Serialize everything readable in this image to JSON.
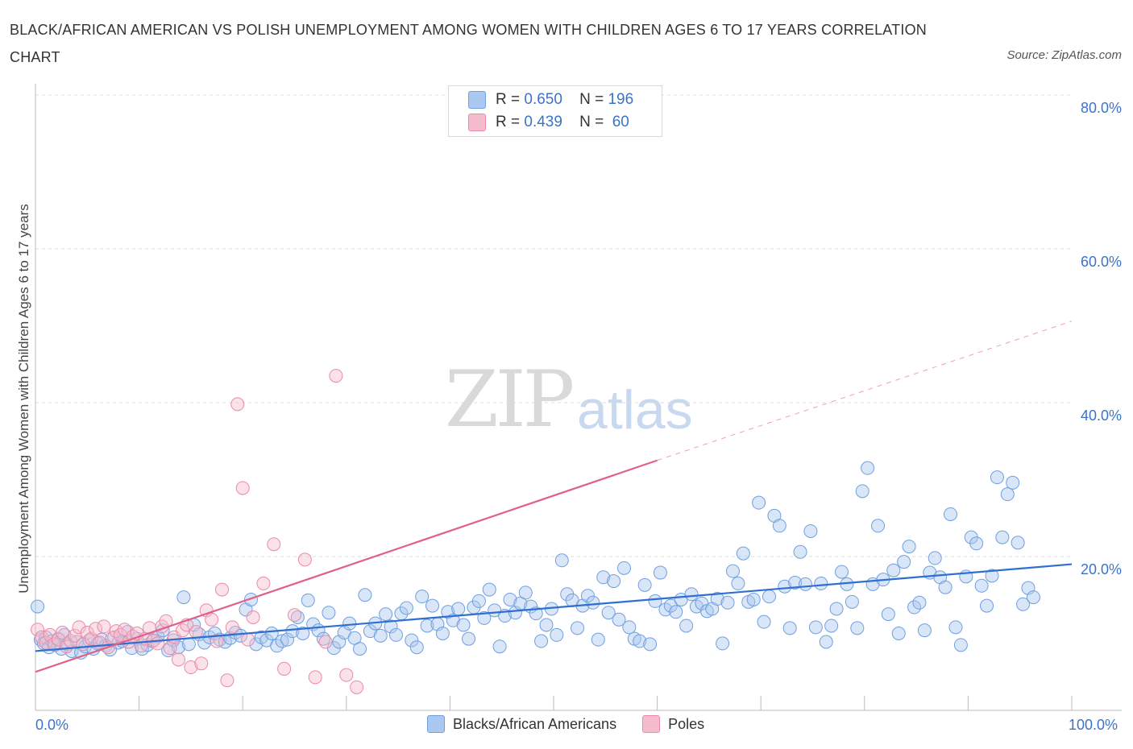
{
  "title": "BLACK/AFRICAN AMERICAN VS POLISH UNEMPLOYMENT AMONG WOMEN WITH CHILDREN AGES 6 TO 17 YEARS CORRELATION CHART",
  "source": "Source: ZipAtlas.com",
  "watermark": {
    "zip": "ZIP",
    "atlas": "atlas"
  },
  "legend_top": {
    "rows": [
      {
        "r_label": "R =",
        "r_value": "0.650",
        "n_label": "N =",
        "n_value": "196",
        "color": "#aac8f0"
      },
      {
        "r_label": "R =",
        "r_value": "0.439",
        "n_label": "N =",
        "n_value": "60",
        "color": "#f6bccd"
      }
    ]
  },
  "legend_bottom": [
    {
      "label": "Blacks/African Americans",
      "color": "#aac8f0"
    },
    {
      "label": "Poles",
      "color": "#f6bccd"
    }
  ],
  "colors": {
    "blue_fill": "#aac8f0",
    "blue_stroke": "#6f9fe0",
    "blue_line": "#2f6fd0",
    "pink_fill": "#f6bccd",
    "pink_stroke": "#ea8aa8",
    "pink_line": "#e0608a",
    "tick_label": "#3b73c8",
    "grid": "#dddddd"
  },
  "chart_data": {
    "type": "scatter",
    "title": "BLACK/AFRICAN AMERICAN VS POLISH UNEMPLOYMENT AMONG WOMEN WITH CHILDREN AGES 6 TO 17 YEARS CORRELATION CHART",
    "xlabel": "",
    "ylabel": "Unemployment Among Women with Children Ages 6 to 17 years",
    "xlim": [
      0,
      100
    ],
    "ylim": [
      0,
      80
    ],
    "x_tick_labels": [
      "0.0%",
      "100.0%"
    ],
    "y_ticks": [
      20,
      40,
      60,
      80
    ],
    "y_tick_labels": [
      "20.0%",
      "40.0%",
      "60.0%",
      "80.0%"
    ],
    "grid": "horizontal dashed",
    "legend_placement": "bottom",
    "series": [
      {
        "name": "Blacks/African Americans",
        "color": "#aac8f0",
        "points": [
          [
            0.2,
            13.5
          ],
          [
            0.5,
            9.2
          ],
          [
            0.8,
            8.7
          ],
          [
            1.0,
            9.5
          ],
          [
            1.3,
            8.2
          ],
          [
            1.6,
            9.0
          ],
          [
            1.9,
            8.5
          ],
          [
            2.2,
            9.3
          ],
          [
            2.5,
            8.0
          ],
          [
            2.8,
            9.8
          ],
          [
            3.1,
            8.6
          ],
          [
            3.5,
            7.7
          ],
          [
            4.0,
            8.9
          ],
          [
            4.4,
            7.5
          ],
          [
            4.8,
            8.3
          ],
          [
            5.2,
            9.1
          ],
          [
            5.6,
            8.0
          ],
          [
            6.0,
            8.7
          ],
          [
            6.4,
            9.2
          ],
          [
            6.8,
            8.4
          ],
          [
            7.2,
            7.9
          ],
          [
            7.6,
            9.5
          ],
          [
            8.0,
            8.8
          ],
          [
            8.4,
            9.0
          ],
          [
            8.9,
            10.2
          ],
          [
            9.3,
            8.1
          ],
          [
            9.8,
            9.3
          ],
          [
            10.3,
            8.0
          ],
          [
            10.8,
            8.5
          ],
          [
            11.3,
            9.0
          ],
          [
            11.8,
            9.6
          ],
          [
            12.3,
            10.4
          ],
          [
            12.8,
            7.8
          ],
          [
            13.3,
            9.1
          ],
          [
            13.8,
            8.2
          ],
          [
            14.3,
            14.7
          ],
          [
            14.8,
            8.6
          ],
          [
            15.3,
            11.1
          ],
          [
            15.8,
            9.9
          ],
          [
            16.3,
            8.8
          ],
          [
            16.8,
            9.5
          ],
          [
            17.3,
            10.0
          ],
          [
            17.8,
            9.2
          ],
          [
            18.3,
            8.9
          ],
          [
            18.8,
            9.4
          ],
          [
            19.3,
            10.1
          ],
          [
            19.8,
            9.7
          ],
          [
            20.3,
            13.1
          ],
          [
            20.8,
            14.4
          ],
          [
            21.3,
            8.6
          ],
          [
            21.8,
            9.5
          ],
          [
            22.3,
            9.1
          ],
          [
            22.8,
            10.0
          ],
          [
            23.3,
            8.4
          ],
          [
            23.8,
            9.0
          ],
          [
            24.3,
            9.2
          ],
          [
            24.8,
            10.3
          ],
          [
            25.3,
            12.1
          ],
          [
            25.8,
            10.0
          ],
          [
            26.3,
            14.3
          ],
          [
            26.8,
            11.2
          ],
          [
            27.3,
            10.4
          ],
          [
            27.8,
            9.3
          ],
          [
            28.3,
            12.7
          ],
          [
            28.8,
            8.1
          ],
          [
            29.3,
            8.9
          ],
          [
            29.8,
            10.1
          ],
          [
            30.3,
            11.3
          ],
          [
            30.8,
            9.4
          ],
          [
            31.3,
            8.0
          ],
          [
            31.8,
            15.0
          ],
          [
            32.3,
            10.3
          ],
          [
            32.8,
            11.3
          ],
          [
            33.3,
            9.7
          ],
          [
            33.8,
            12.5
          ],
          [
            34.3,
            10.9
          ],
          [
            34.8,
            9.8
          ],
          [
            35.3,
            12.6
          ],
          [
            35.8,
            13.3
          ],
          [
            36.3,
            9.1
          ],
          [
            36.8,
            8.2
          ],
          [
            37.3,
            14.8
          ],
          [
            37.8,
            11.0
          ],
          [
            38.3,
            13.6
          ],
          [
            38.8,
            11.2
          ],
          [
            39.3,
            10.0
          ],
          [
            39.8,
            12.8
          ],
          [
            40.3,
            11.7
          ],
          [
            40.8,
            13.2
          ],
          [
            41.3,
            11.1
          ],
          [
            41.8,
            9.3
          ],
          [
            42.3,
            13.4
          ],
          [
            42.8,
            14.2
          ],
          [
            43.3,
            12.0
          ],
          [
            43.8,
            15.7
          ],
          [
            44.3,
            13.0
          ],
          [
            44.8,
            8.3
          ],
          [
            45.3,
            12.3
          ],
          [
            45.8,
            14.4
          ],
          [
            46.3,
            12.7
          ],
          [
            46.8,
            13.9
          ],
          [
            47.3,
            15.3
          ],
          [
            47.8,
            13.5
          ],
          [
            48.3,
            12.6
          ],
          [
            48.8,
            9.0
          ],
          [
            49.3,
            11.1
          ],
          [
            49.8,
            13.2
          ],
          [
            50.3,
            9.8
          ],
          [
            50.8,
            19.5
          ],
          [
            51.3,
            15.1
          ],
          [
            51.8,
            14.3
          ],
          [
            52.3,
            10.7
          ],
          [
            52.8,
            13.6
          ],
          [
            53.3,
            14.9
          ],
          [
            53.8,
            14.0
          ],
          [
            54.3,
            9.2
          ],
          [
            54.8,
            17.3
          ],
          [
            55.3,
            12.7
          ],
          [
            55.8,
            16.8
          ],
          [
            56.3,
            11.8
          ],
          [
            56.8,
            18.5
          ],
          [
            57.3,
            10.8
          ],
          [
            57.8,
            9.3
          ],
          [
            58.3,
            9.0
          ],
          [
            58.8,
            16.3
          ],
          [
            59.3,
            8.6
          ],
          [
            59.8,
            14.2
          ],
          [
            60.3,
            17.9
          ],
          [
            60.8,
            13.1
          ],
          [
            61.3,
            13.6
          ],
          [
            61.8,
            12.8
          ],
          [
            62.3,
            14.4
          ],
          [
            62.8,
            11.0
          ],
          [
            63.3,
            15.1
          ],
          [
            63.8,
            13.5
          ],
          [
            64.3,
            13.9
          ],
          [
            64.8,
            12.9
          ],
          [
            65.3,
            13.2
          ],
          [
            65.8,
            14.5
          ],
          [
            66.3,
            8.7
          ],
          [
            66.8,
            14.0
          ],
          [
            67.3,
            18.1
          ],
          [
            67.8,
            16.5
          ],
          [
            68.3,
            20.4
          ],
          [
            68.8,
            14.1
          ],
          [
            69.3,
            14.4
          ],
          [
            69.8,
            27.0
          ],
          [
            70.3,
            11.5
          ],
          [
            70.8,
            14.8
          ],
          [
            71.3,
            25.3
          ],
          [
            71.8,
            24.0
          ],
          [
            72.3,
            16.1
          ],
          [
            72.8,
            10.7
          ],
          [
            73.3,
            16.6
          ],
          [
            73.8,
            20.6
          ],
          [
            74.3,
            16.4
          ],
          [
            74.8,
            23.3
          ],
          [
            75.3,
            10.8
          ],
          [
            75.8,
            16.5
          ],
          [
            76.3,
            8.9
          ],
          [
            76.8,
            11.0
          ],
          [
            77.3,
            13.2
          ],
          [
            77.8,
            18.0
          ],
          [
            78.3,
            16.4
          ],
          [
            78.8,
            14.1
          ],
          [
            79.3,
            10.7
          ],
          [
            79.8,
            28.5
          ],
          [
            80.3,
            31.5
          ],
          [
            80.8,
            16.4
          ],
          [
            81.3,
            24.0
          ],
          [
            81.8,
            17.0
          ],
          [
            82.3,
            12.5
          ],
          [
            82.8,
            18.2
          ],
          [
            83.3,
            10.0
          ],
          [
            83.8,
            19.3
          ],
          [
            84.3,
            21.3
          ],
          [
            84.8,
            13.4
          ],
          [
            85.3,
            14.0
          ],
          [
            85.8,
            10.4
          ],
          [
            86.3,
            17.9
          ],
          [
            86.8,
            19.8
          ],
          [
            87.3,
            17.3
          ],
          [
            87.8,
            16.0
          ],
          [
            88.3,
            25.5
          ],
          [
            88.8,
            10.8
          ],
          [
            89.3,
            8.5
          ],
          [
            89.8,
            17.4
          ],
          [
            90.3,
            22.5
          ],
          [
            90.8,
            21.7
          ],
          [
            91.3,
            16.2
          ],
          [
            91.8,
            13.6
          ],
          [
            92.3,
            17.5
          ],
          [
            92.8,
            30.3
          ],
          [
            93.3,
            22.5
          ],
          [
            93.8,
            28.1
          ],
          [
            94.3,
            29.6
          ],
          [
            94.8,
            21.8
          ],
          [
            95.3,
            13.8
          ],
          [
            95.8,
            15.9
          ],
          [
            96.3,
            14.7
          ]
        ]
      },
      {
        "name": "Poles",
        "color": "#f6bccd",
        "points": [
          [
            0.2,
            10.5
          ],
          [
            0.6,
            9.5
          ],
          [
            1.0,
            8.8
          ],
          [
            1.4,
            9.8
          ],
          [
            1.8,
            8.6
          ],
          [
            2.2,
            9.2
          ],
          [
            2.6,
            10.1
          ],
          [
            3.0,
            8.3
          ],
          [
            3.4,
            9.0
          ],
          [
            3.8,
            9.7
          ],
          [
            4.2,
            10.8
          ],
          [
            4.6,
            8.6
          ],
          [
            5.0,
            10.1
          ],
          [
            5.4,
            9.3
          ],
          [
            5.8,
            10.6
          ],
          [
            6.2,
            8.8
          ],
          [
            6.6,
            10.9
          ],
          [
            7.0,
            8.2
          ],
          [
            7.4,
            9.4
          ],
          [
            7.8,
            10.3
          ],
          [
            8.2,
            9.8
          ],
          [
            8.6,
            10.5
          ],
          [
            9.0,
            8.9
          ],
          [
            9.4,
            9.6
          ],
          [
            9.8,
            10.0
          ],
          [
            10.2,
            8.4
          ],
          [
            10.6,
            9.3
          ],
          [
            11.0,
            10.7
          ],
          [
            11.4,
            9.1
          ],
          [
            11.8,
            8.7
          ],
          [
            12.2,
            10.9
          ],
          [
            12.6,
            11.6
          ],
          [
            13.0,
            8.1
          ],
          [
            13.4,
            9.5
          ],
          [
            13.8,
            6.6
          ],
          [
            14.2,
            10.4
          ],
          [
            14.6,
            11.1
          ],
          [
            15.0,
            5.6
          ],
          [
            15.5,
            10.2
          ],
          [
            16.0,
            6.1
          ],
          [
            16.5,
            13.0
          ],
          [
            17.0,
            11.8
          ],
          [
            17.5,
            9.0
          ],
          [
            18.0,
            15.7
          ],
          [
            18.5,
            3.9
          ],
          [
            19.0,
            10.8
          ],
          [
            19.5,
            39.8
          ],
          [
            20.0,
            28.9
          ],
          [
            20.5,
            9.2
          ],
          [
            21.0,
            12.1
          ],
          [
            22.0,
            16.5
          ],
          [
            23.0,
            21.6
          ],
          [
            24.0,
            5.4
          ],
          [
            25.0,
            12.4
          ],
          [
            26.0,
            19.6
          ],
          [
            27.0,
            4.3
          ],
          [
            28.0,
            8.9
          ],
          [
            29.0,
            43.5
          ],
          [
            30.0,
            4.6
          ],
          [
            31.0,
            3.0
          ]
        ]
      }
    ],
    "trendlines": [
      {
        "series": "Blacks/African Americans",
        "from": [
          0,
          7.7
        ],
        "to": [
          100,
          19.0
        ],
        "style": "solid"
      },
      {
        "series": "Poles",
        "from": [
          0,
          5.0
        ],
        "to": [
          60,
          32.5
        ],
        "style": "solid"
      },
      {
        "series": "Poles",
        "from": [
          60,
          32.5
        ],
        "to": [
          100,
          50.6
        ],
        "style": "dashed"
      }
    ]
  }
}
